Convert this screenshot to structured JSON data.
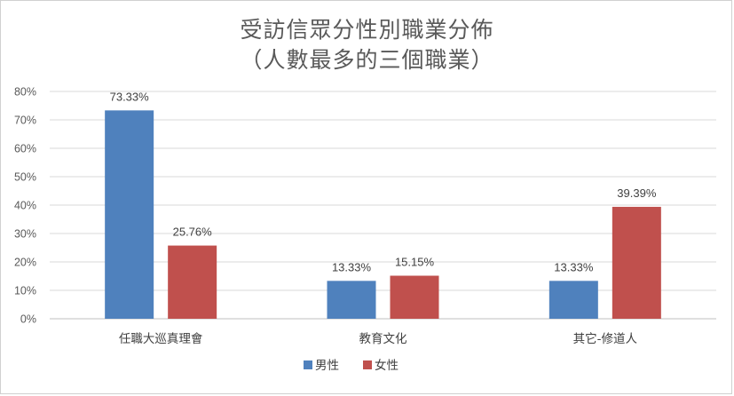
{
  "chart_data": {
    "type": "bar",
    "title_line1": "受訪信眾分性別職業分佈",
    "title_line2": "（人數最多的三個職業）",
    "categories": [
      "任職大巡真理會",
      "教育文化",
      "其它-修道人"
    ],
    "series": [
      {
        "name": "男性",
        "color": "#4f81bd",
        "values": [
          73.33,
          13.33,
          13.33
        ],
        "labels": [
          "73.33%",
          "13.33%",
          "13.33%"
        ]
      },
      {
        "name": "女性",
        "color": "#c0504d",
        "values": [
          25.76,
          15.15,
          39.39
        ],
        "labels": [
          "25.76%",
          "15.15%",
          "39.39%"
        ]
      }
    ],
    "ylim": [
      0,
      80
    ],
    "yticks": [
      "0%",
      "10%",
      "20%",
      "30%",
      "40%",
      "50%",
      "60%",
      "70%",
      "80%"
    ],
    "grid": true,
    "legend_position": "bottom"
  }
}
